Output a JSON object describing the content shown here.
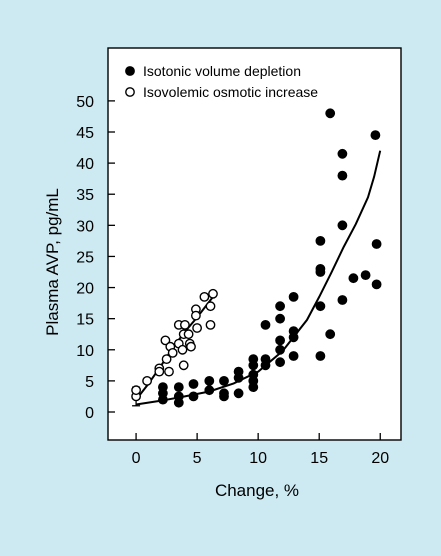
{
  "chart_data": {
    "type": "scatter",
    "xlabel": "Change, %",
    "ylabel": "Plasma AVP, pg/mL",
    "xlim": [
      -2.3,
      21.7
    ],
    "ylim": [
      -4.5,
      58.5
    ],
    "x_ticks": [
      0,
      5,
      10,
      15,
      20
    ],
    "y_ticks": [
      0,
      5,
      10,
      15,
      20,
      25,
      30,
      35,
      40,
      45,
      50
    ],
    "grid": false,
    "legend_position": "top-left",
    "series": [
      {
        "name": "Isotonic volume depletion",
        "marker": "filled-circle",
        "color": "#000000",
        "points": [
          [
            2.2,
            4.0
          ],
          [
            2.2,
            3.0
          ],
          [
            2.2,
            2.0
          ],
          [
            3.5,
            4.0
          ],
          [
            3.5,
            2.5
          ],
          [
            3.5,
            1.5
          ],
          [
            4.7,
            4.5
          ],
          [
            4.7,
            2.5
          ],
          [
            6.0,
            5.0
          ],
          [
            6.0,
            3.5
          ],
          [
            7.2,
            5.0
          ],
          [
            7.2,
            3.0
          ],
          [
            7.2,
            2.5
          ],
          [
            8.4,
            6.5
          ],
          [
            8.4,
            5.5
          ],
          [
            8.4,
            3.0
          ],
          [
            9.6,
            8.5
          ],
          [
            9.6,
            7.5
          ],
          [
            9.6,
            6.0
          ],
          [
            9.6,
            5.0
          ],
          [
            9.6,
            4.0
          ],
          [
            10.6,
            14.0
          ],
          [
            10.6,
            8.5
          ],
          [
            10.6,
            7.5
          ],
          [
            11.8,
            17.0
          ],
          [
            11.8,
            15.0
          ],
          [
            11.8,
            11.5
          ],
          [
            11.8,
            10.0
          ],
          [
            11.8,
            8.0
          ],
          [
            12.9,
            18.5
          ],
          [
            12.9,
            13.0
          ],
          [
            12.9,
            12.0
          ],
          [
            12.9,
            9.0
          ],
          [
            15.1,
            27.5
          ],
          [
            15.1,
            23.0
          ],
          [
            15.1,
            22.5
          ],
          [
            15.1,
            17.0
          ],
          [
            15.1,
            9.0
          ],
          [
            15.9,
            48.0
          ],
          [
            15.9,
            12.5
          ],
          [
            16.9,
            41.5
          ],
          [
            16.9,
            38.0
          ],
          [
            16.9,
            30.0
          ],
          [
            16.9,
            18.0
          ],
          [
            17.8,
            21.5
          ],
          [
            18.8,
            22.0
          ],
          [
            19.6,
            44.5
          ],
          [
            19.7,
            27.0
          ],
          [
            19.7,
            20.5
          ]
        ]
      },
      {
        "name": "Isovolemic osmotic increase",
        "marker": "open-circle",
        "color": "#000000",
        "points": [
          [
            0.0,
            2.5
          ],
          [
            0.0,
            3.5
          ],
          [
            0.9,
            5.0
          ],
          [
            1.9,
            7.0
          ],
          [
            1.9,
            6.5
          ],
          [
            2.4,
            11.5
          ],
          [
            2.5,
            8.5
          ],
          [
            2.7,
            6.5
          ],
          [
            2.8,
            10.5
          ],
          [
            3.0,
            9.5
          ],
          [
            3.5,
            14.0
          ],
          [
            3.5,
            11.0
          ],
          [
            3.8,
            10.0
          ],
          [
            3.9,
            12.5
          ],
          [
            3.9,
            7.5
          ],
          [
            4.0,
            14.0
          ],
          [
            4.3,
            12.5
          ],
          [
            4.4,
            11.0
          ],
          [
            4.5,
            10.5
          ],
          [
            4.9,
            16.5
          ],
          [
            4.9,
            15.5
          ],
          [
            5.0,
            13.5
          ],
          [
            5.6,
            18.5
          ],
          [
            6.1,
            17.0
          ],
          [
            6.1,
            14.0
          ],
          [
            6.3,
            19.0
          ]
        ]
      }
    ],
    "trend_lines": [
      {
        "series": "Isotonic volume depletion",
        "x": [
          0,
          2,
          4,
          6,
          8,
          10,
          12,
          14,
          15,
          16,
          17,
          18,
          19,
          19.5,
          20
        ],
        "y": [
          1.2,
          1.8,
          2.5,
          3.3,
          4.6,
          6.5,
          9.8,
          14.8,
          18.5,
          22.4,
          26.5,
          30.2,
          34.5,
          37.8,
          42.0
        ]
      },
      {
        "series": "Isovolemic osmotic increase",
        "x": [
          0,
          1,
          2,
          3,
          4,
          5,
          6.5
        ],
        "y": [
          2.0,
          4.5,
          7.3,
          10.3,
          12.9,
          15.2,
          19.0
        ]
      }
    ]
  }
}
